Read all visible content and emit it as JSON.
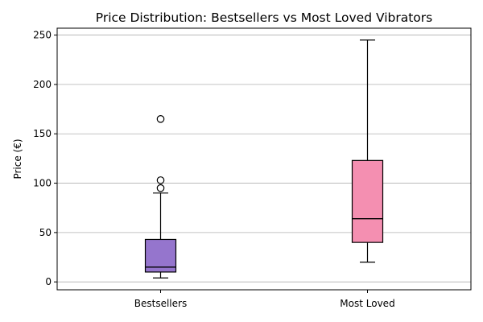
{
  "chart_data": {
    "type": "box",
    "title": "Price Distribution: Bestsellers vs Most Loved Vibrators",
    "xlabel": "",
    "ylabel": "Price (€)",
    "categories": [
      "Bestsellers",
      "Most Loved"
    ],
    "ylim": [
      -8,
      257
    ],
    "yticks": [
      0,
      50,
      100,
      150,
      200,
      250
    ],
    "grid": "y",
    "series": [
      {
        "category": "Bestsellers",
        "whisker_low": 4,
        "q1": 10,
        "median": 15,
        "q3": 43,
        "whisker_high": 90,
        "outliers": [
          95,
          103,
          165
        ],
        "color": "#9575cd"
      },
      {
        "category": "Most Loved",
        "whisker_low": 20,
        "q1": 40,
        "median": 64,
        "q3": 123,
        "whisker_high": 245,
        "outliers": [],
        "color": "#f48fb1"
      }
    ]
  }
}
